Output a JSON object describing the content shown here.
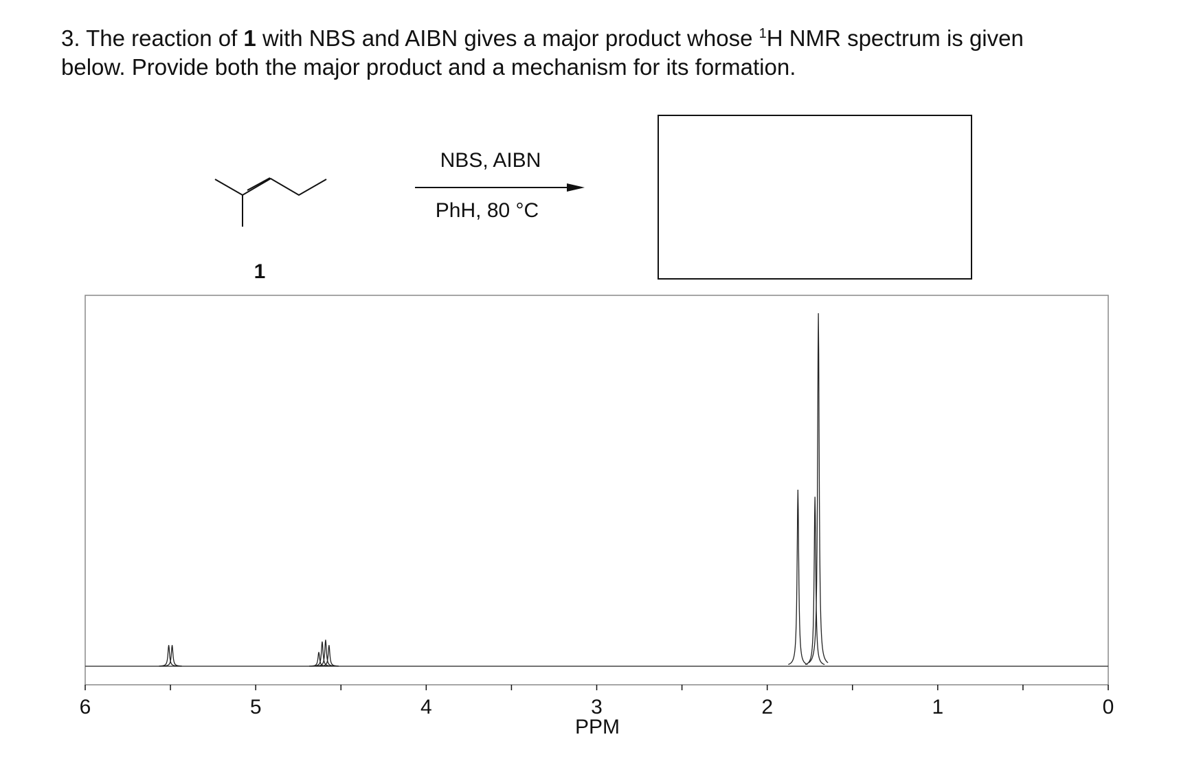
{
  "question": {
    "number": "3.",
    "text_before": "The reaction of",
    "compound": "1",
    "text_middle": "with NBS and AIBN gives a major product whose",
    "isotope": "1",
    "text_after": "H NMR spectrum is given",
    "line2": "below. Provide both the major product and a mechanism for its formation."
  },
  "scheme": {
    "compound_label": "1",
    "reagents_above": "NBS, AIBN",
    "conditions_below": "PhH, 80 °C"
  },
  "spectrum": {
    "xlim": [
      6,
      0
    ],
    "xticks": [
      6,
      5,
      4,
      3,
      2,
      1,
      0
    ],
    "xlabel": "PPM",
    "peaks": [
      {
        "ppm": 5.51,
        "height": 6
      },
      {
        "ppm": 5.49,
        "height": 6
      },
      {
        "ppm": 4.63,
        "height": 4
      },
      {
        "ppm": 4.61,
        "height": 7
      },
      {
        "ppm": 4.59,
        "height": 7.5
      },
      {
        "ppm": 4.57,
        "height": 6
      },
      {
        "ppm": 1.82,
        "height": 50
      },
      {
        "ppm": 1.72,
        "height": 48
      },
      {
        "ppm": 1.7,
        "height": 100
      }
    ]
  }
}
